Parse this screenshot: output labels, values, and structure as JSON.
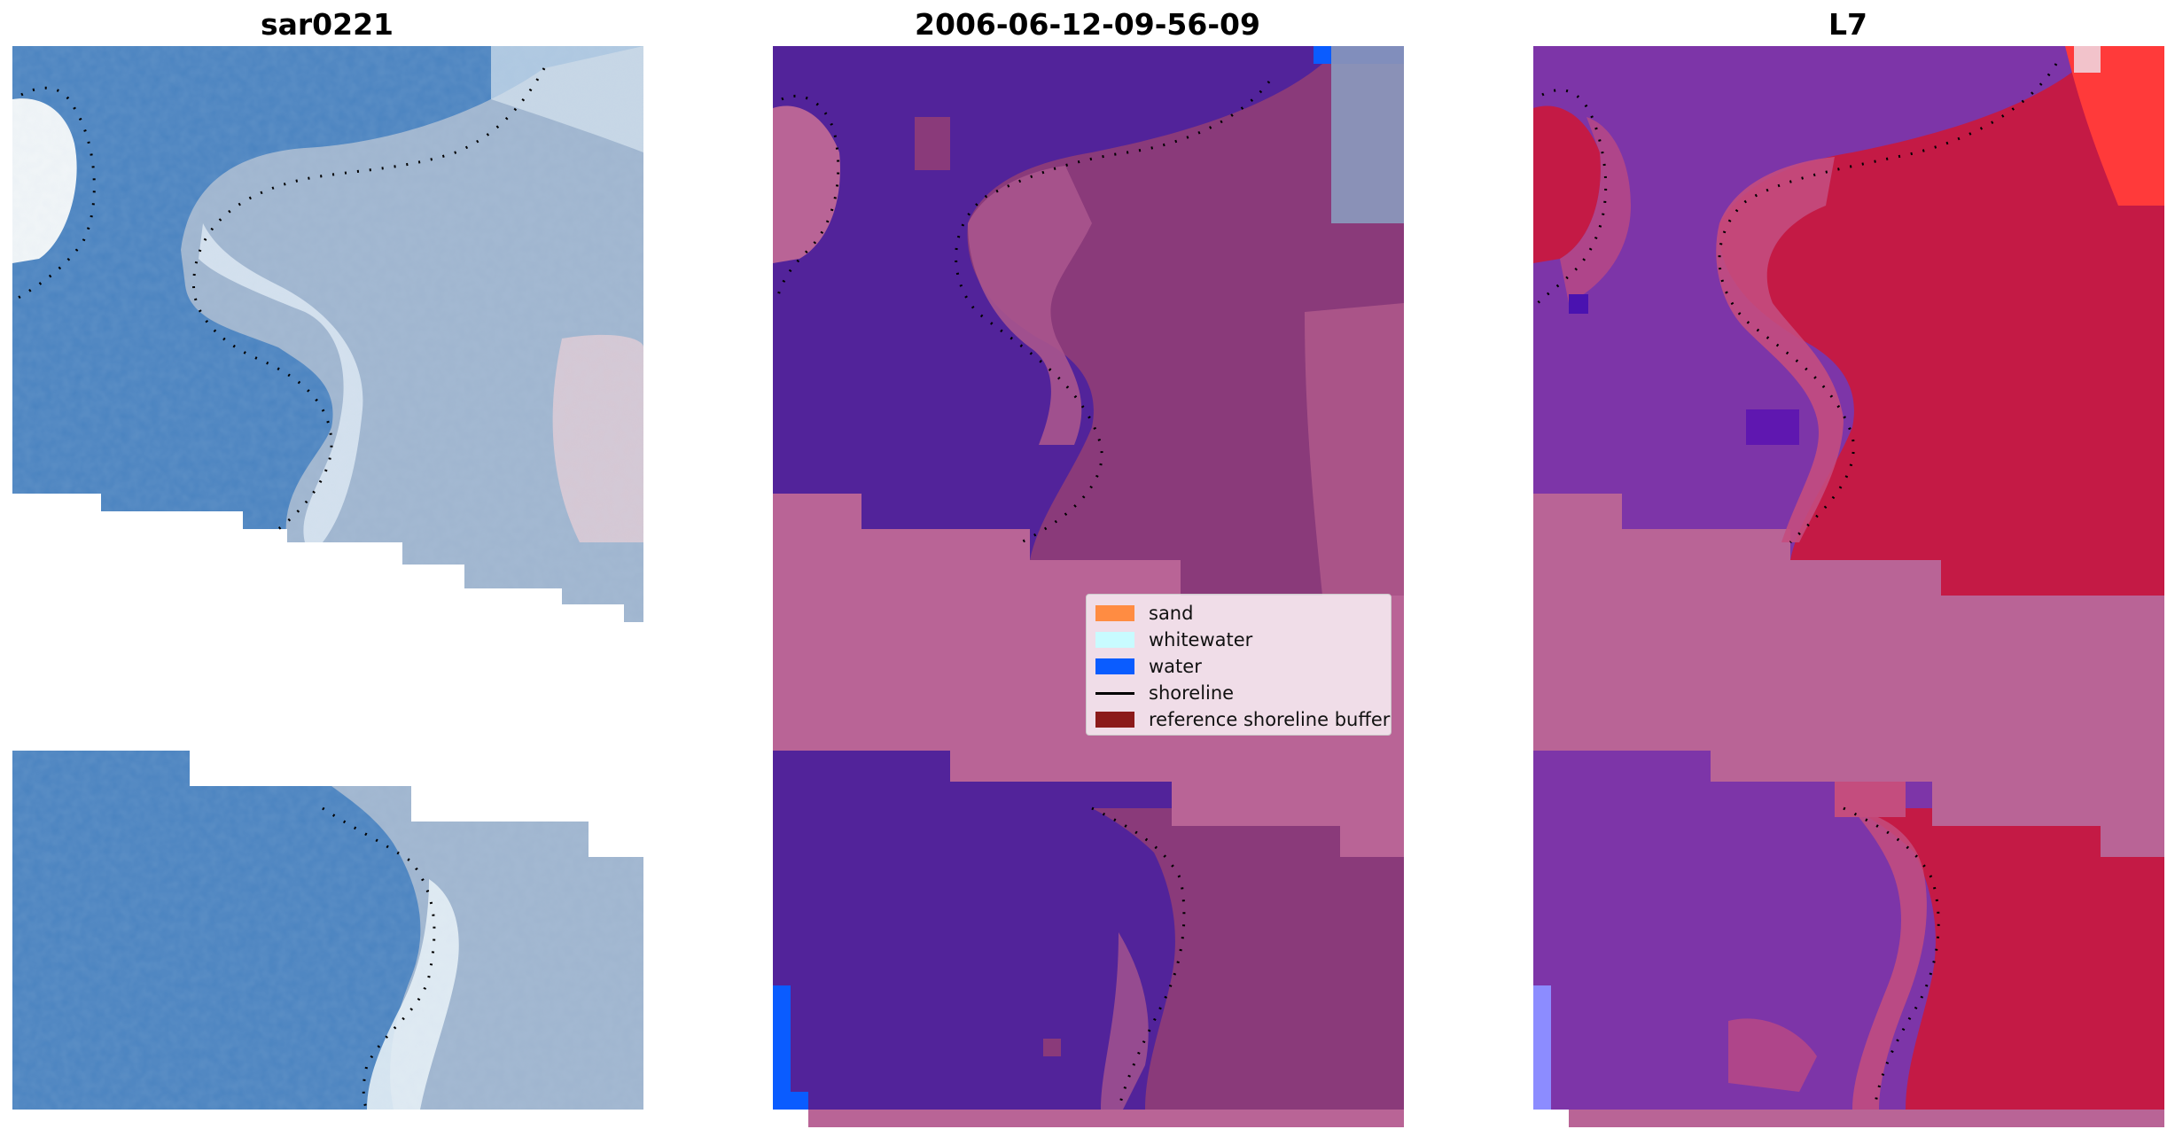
{
  "panels": [
    {
      "title": "sar0221"
    },
    {
      "title": "2006-06-12-09-56-09"
    },
    {
      "title": "L7"
    }
  ],
  "legend": {
    "items": [
      {
        "label": "sand",
        "color": "#ff8c42",
        "kind": "patch"
      },
      {
        "label": "whitewater",
        "color": "#c8fbff",
        "kind": "patch"
      },
      {
        "label": "water",
        "color": "#0a5cff",
        "kind": "patch"
      },
      {
        "label": "shoreline",
        "color": "#000000",
        "kind": "line"
      },
      {
        "label": "reference shoreline buffer",
        "color": "#8b1a1a",
        "kind": "patch"
      }
    ]
  },
  "colors": {
    "rgb_water": "#3f78b8",
    "rgb_land": "#a9b9cf",
    "rgb_whitewater": "#eef6fb",
    "classified_water": "#52239a",
    "classified_land": "#8a3a7a",
    "classified_buffer": "#b96496",
    "mndwi_water": "#7d35a8",
    "mndwi_land": "#c41a45",
    "mndwi_buffer": "#b96496"
  }
}
